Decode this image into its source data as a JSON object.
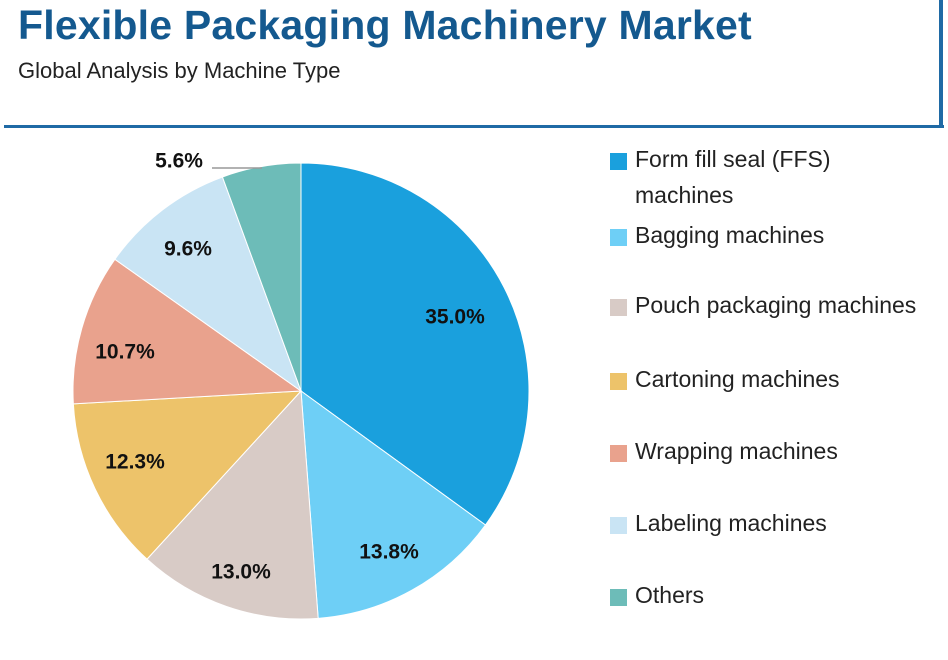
{
  "header": {
    "title": "Flexible Packaging Machinery Market",
    "subtitle": "Global Analysis by Machine Type"
  },
  "chart_data": {
    "type": "pie",
    "title": "Flexible Packaging Machinery Market",
    "subtitle": "Global Analysis by Machine Type",
    "legend_position": "right",
    "slices": [
      {
        "name": "Form fill seal (FFS) machines",
        "value": 35.0,
        "label": "35.0%",
        "color": "#1aa0dd"
      },
      {
        "name": "Bagging machines",
        "value": 13.8,
        "label": "13.8%",
        "color": "#6ecff6"
      },
      {
        "name": "Pouch packaging machines",
        "value": 13.0,
        "label": "13.0%",
        "color": "#d8cbc6"
      },
      {
        "name": "Cartoning machines",
        "value": 12.3,
        "label": "12.3%",
        "color": "#edc36a"
      },
      {
        "name": "Wrapping machines",
        "value": 10.7,
        "label": "10.7%",
        "color": "#e9a28d"
      },
      {
        "name": "Labeling machines",
        "value": 9.6,
        "label": "9.6%",
        "color": "#c9e4f4"
      },
      {
        "name": "Others",
        "value": 5.6,
        "label": "5.6%",
        "color": "#6dbcb8"
      }
    ]
  }
}
